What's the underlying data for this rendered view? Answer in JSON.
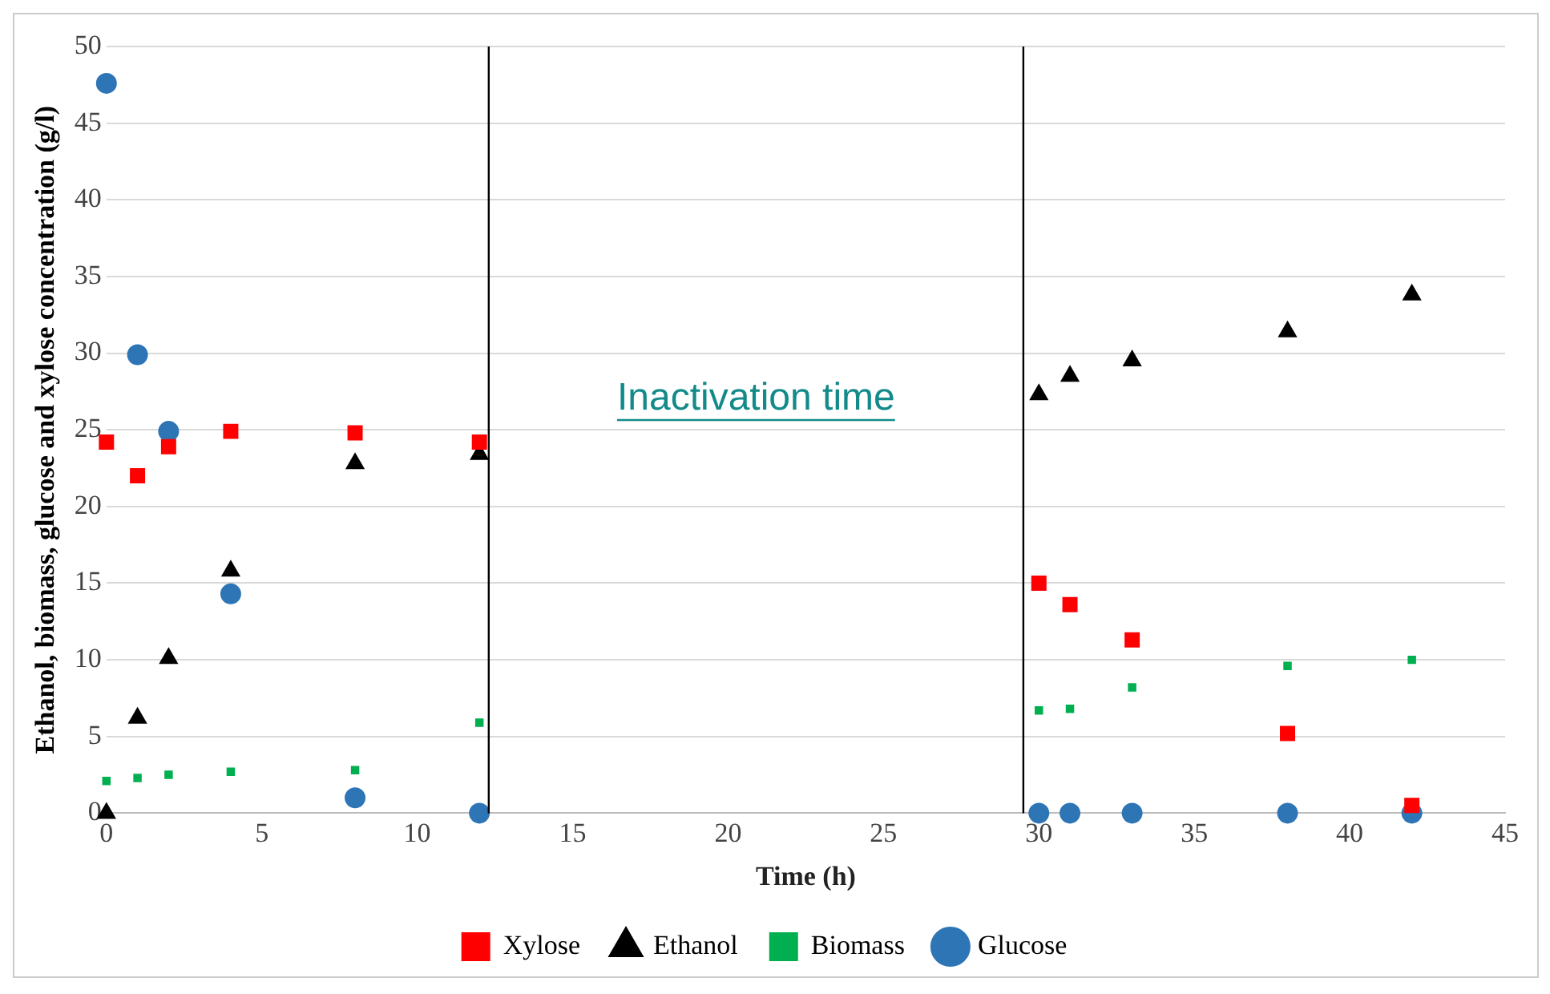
{
  "chart_data": {
    "type": "scatter",
    "xlabel": "Time (h)",
    "ylabel": "Ethanol, biomass, glucose and xylose concentration (g/l)",
    "xlim": [
      0,
      45
    ],
    "xticks": [
      0,
      5,
      10,
      15,
      20,
      25,
      30,
      35,
      40,
      45
    ],
    "ylim": [
      0,
      50
    ],
    "yticks": [
      0,
      5,
      10,
      15,
      20,
      25,
      30,
      35,
      40,
      45,
      50
    ],
    "grid": "y",
    "legend": "bottom",
    "x": [
      0,
      1,
      2,
      4,
      8,
      12,
      30,
      31,
      33,
      38,
      42
    ],
    "series": [
      {
        "name": "Glucose",
        "color": "#2e75b6",
        "marker": "circle",
        "values": [
          47.6,
          29.9,
          24.9,
          14.3,
          1,
          0,
          0,
          0,
          0,
          0,
          0
        ]
      },
      {
        "name": "Xylose",
        "color": "#ff0000",
        "marker": "square",
        "values": [
          24.2,
          22,
          23.9,
          24.9,
          24.8,
          24.2,
          15,
          13.6,
          11.3,
          5.2,
          0.5
        ]
      },
      {
        "name": "Ethanol",
        "color": "#000000",
        "marker": "triangle",
        "values": [
          0,
          6.2,
          10.1,
          15.8,
          22.8,
          23.4,
          27.3,
          28.5,
          29.5,
          31.4,
          33.8
        ]
      },
      {
        "name": "Biomass",
        "color": "#00b050",
        "marker": "square",
        "values": [
          2.1,
          2.3,
          2.5,
          2.7,
          2.8,
          5.9,
          6.7,
          6.8,
          8.2,
          9.6,
          10
        ]
      }
    ],
    "ref_lines": [
      {
        "axis": "x",
        "value": 12.3,
        "color": "#000000"
      },
      {
        "axis": "x",
        "value": 29.5,
        "color": "#000000"
      }
    ],
    "annotations": [
      "Inactivation time"
    ]
  }
}
